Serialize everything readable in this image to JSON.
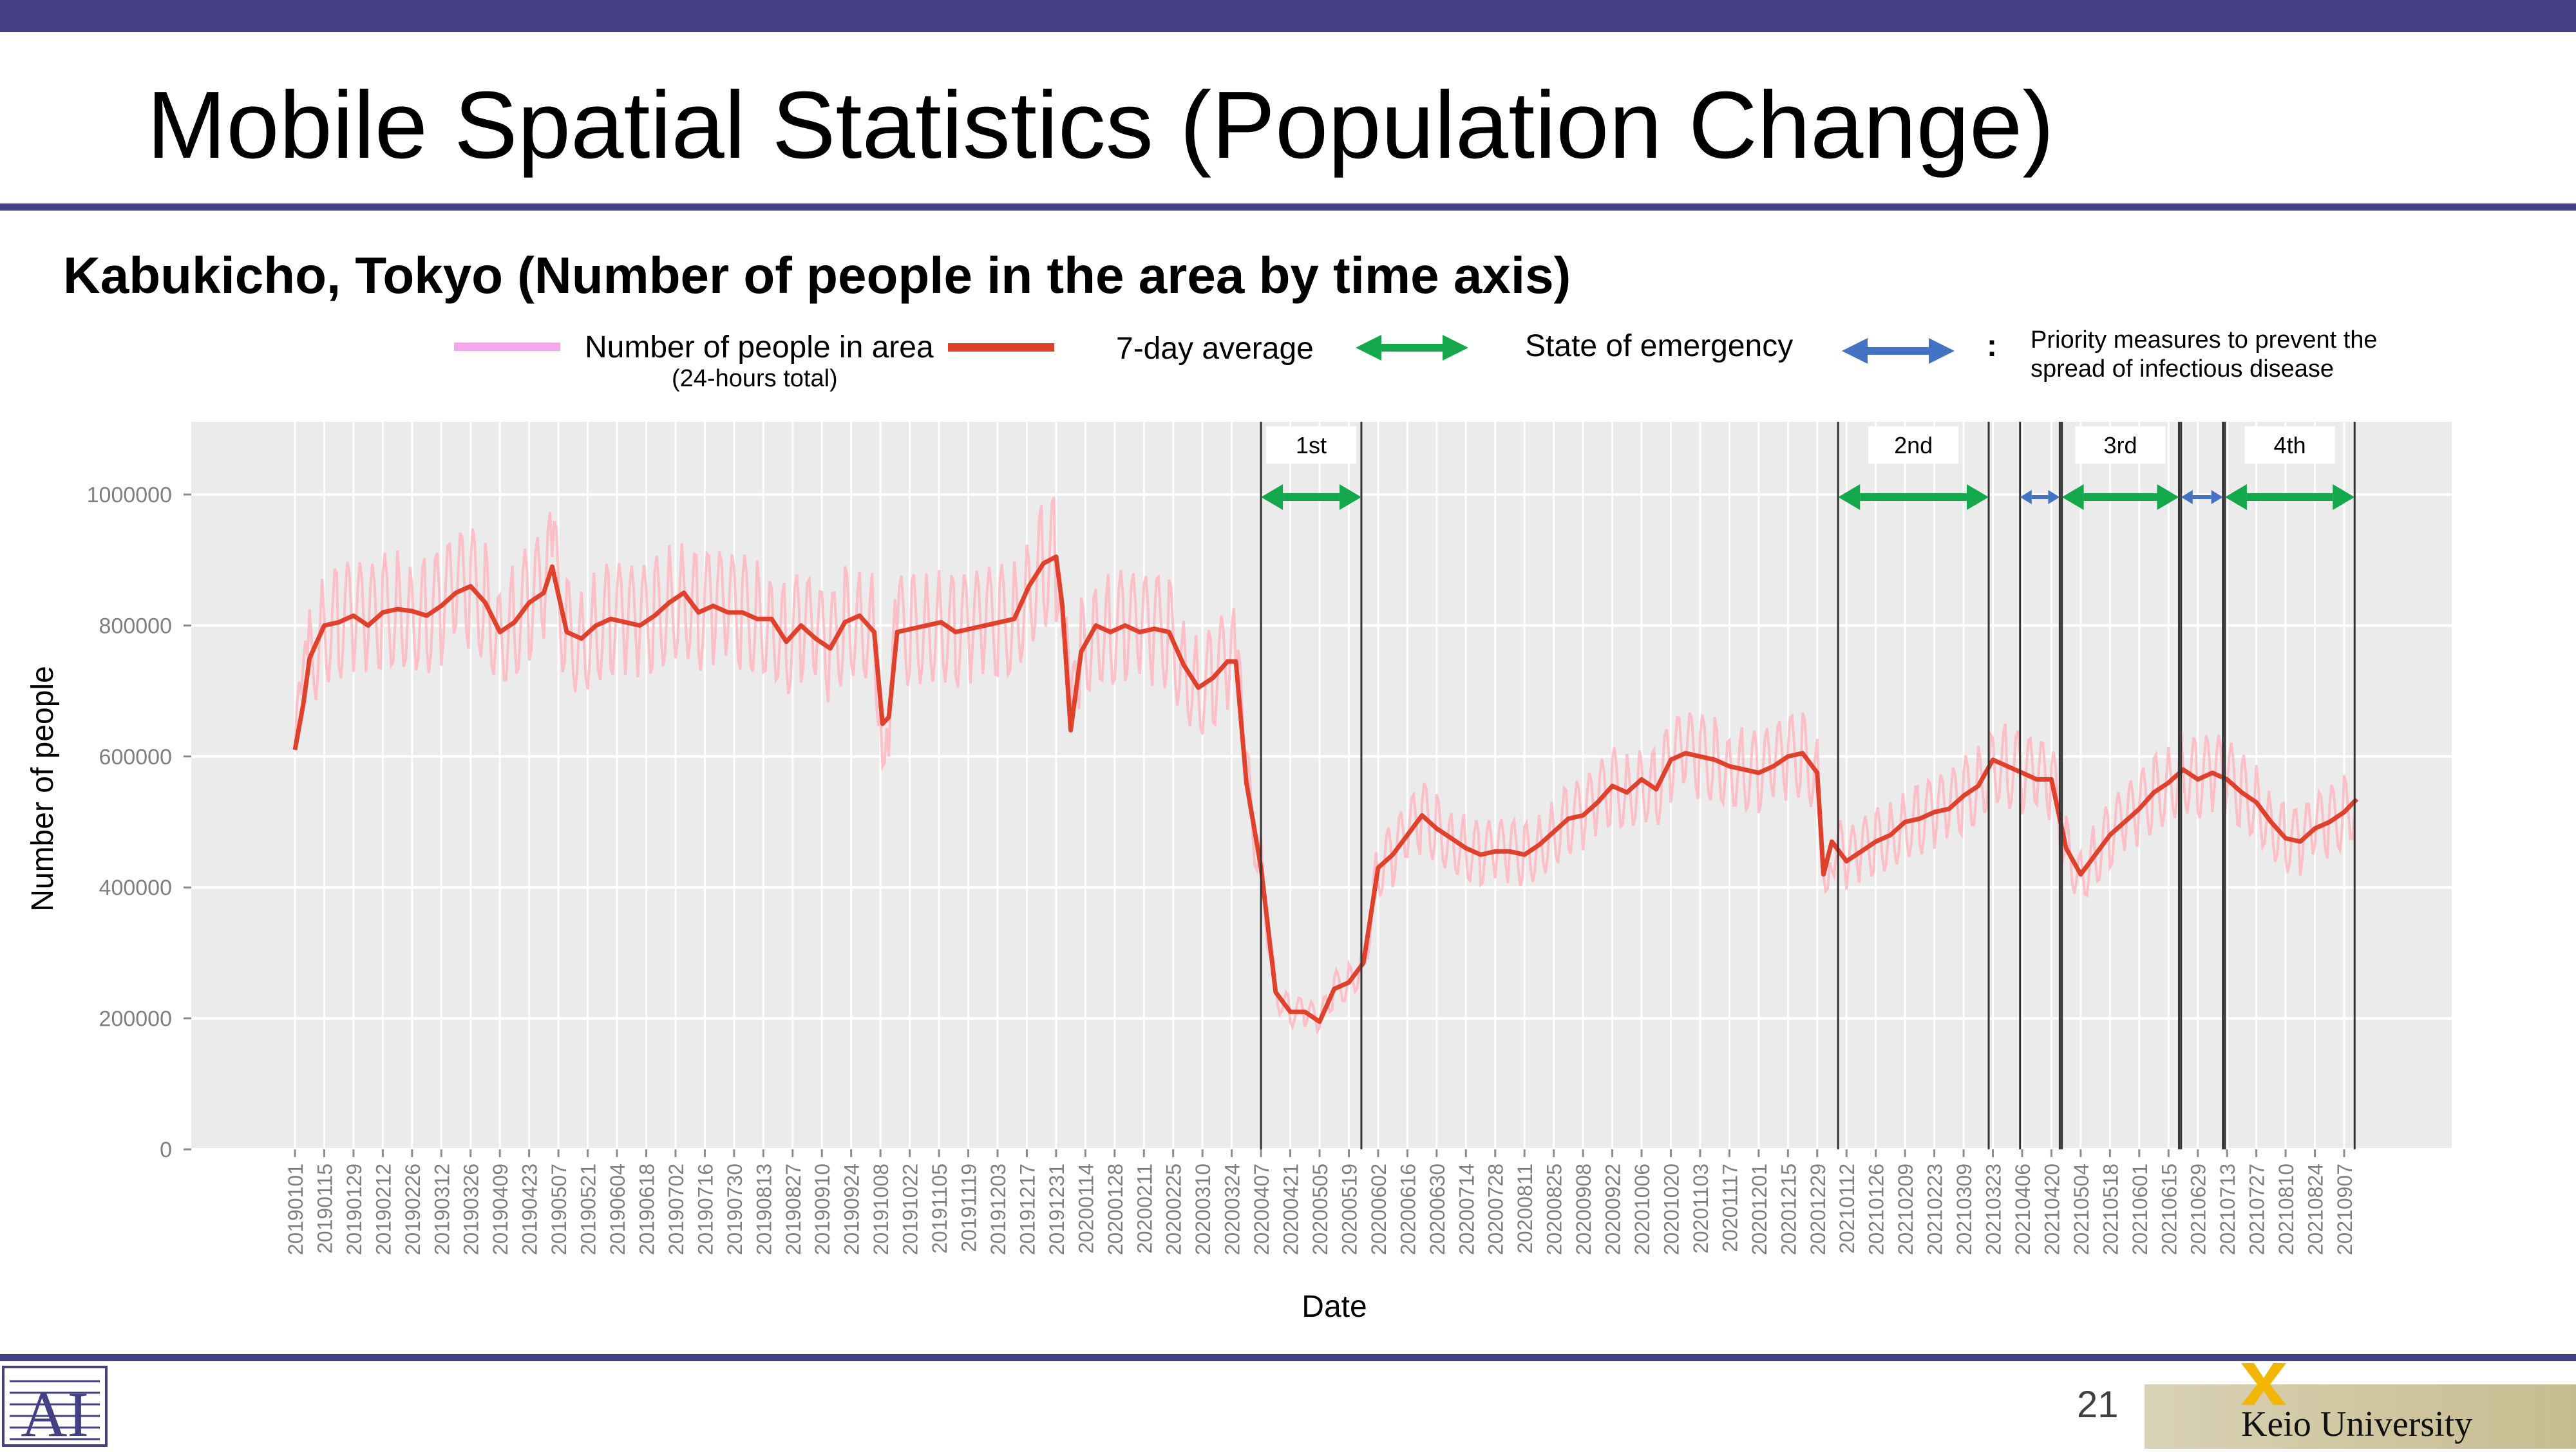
{
  "slide": {
    "title": "Mobile Spatial Statistics (Population Change)",
    "subtitle": "Kabukicho, Tokyo (Number of people in the area by time axis)",
    "page_number": "21",
    "brand": "Keio University"
  },
  "legend": {
    "daily_label": "Number of people in area",
    "daily_sub": "(24-hours total)",
    "avg_label": "7-day average",
    "emergency_label": "State of emergency",
    "priority_colon": ":",
    "priority_line1": "Priority measures to prevent the",
    "priority_line2": "spread of infectious disease"
  },
  "colors": {
    "header_bar": "#453f86",
    "daily": "#ffb6c1",
    "legend_daily": "#f4a8ec",
    "average": "#e0412c",
    "emergency": "#12a84b",
    "priority": "#4573c4",
    "plot_bg": "#ebebeb"
  },
  "chart_data": {
    "type": "line",
    "xlabel": "Date",
    "ylabel": "Number of people",
    "ylim": [
      0,
      1100000
    ],
    "yticks": [
      0,
      200000,
      400000,
      600000,
      800000,
      1000000
    ],
    "ytick_labels": [
      "0",
      "200000",
      "400000",
      "600000",
      "800000",
      "1000000"
    ],
    "x_tick_dates": [
      "20190101",
      "20190115",
      "20190129",
      "20190212",
      "20190226",
      "20190312",
      "20190326",
      "20190409",
      "20190423",
      "20190507",
      "20190521",
      "20190604",
      "20190618",
      "20190702",
      "20190716",
      "20190730",
      "20190813",
      "20190827",
      "20190910",
      "20190924",
      "20191008",
      "20191022",
      "20191105",
      "20191119",
      "20191203",
      "20191217",
      "20191231",
      "20200114",
      "20200128",
      "20200211",
      "20200225",
      "20200310",
      "20200324",
      "20200407",
      "20200421",
      "20200505",
      "20200519",
      "20200602",
      "20200616",
      "20200630",
      "20200714",
      "20200728",
      "20200811",
      "20200825",
      "20200908",
      "20200922",
      "20201006",
      "20201020",
      "20201103",
      "20201117",
      "20201201",
      "20201215",
      "20201229",
      "20210112",
      "20210126",
      "20210209",
      "20210223",
      "20210309",
      "20210323",
      "20210406",
      "20210420",
      "20210504",
      "20210518",
      "20210601",
      "20210615",
      "20210629",
      "20210713",
      "20210727",
      "20210810",
      "20210824",
      "20210907"
    ],
    "x_range": [
      "20190101",
      "20210913"
    ],
    "grid": true,
    "series": [
      {
        "name": "7-day average",
        "points": [
          [
            "20190101",
            610000
          ],
          [
            "20190105",
            680000
          ],
          [
            "20190108",
            750000
          ],
          [
            "20190115",
            800000
          ],
          [
            "20190122",
            805000
          ],
          [
            "20190129",
            815000
          ],
          [
            "20190205",
            800000
          ],
          [
            "20190212",
            820000
          ],
          [
            "20190219",
            825000
          ],
          [
            "20190226",
            822000
          ],
          [
            "20190305",
            815000
          ],
          [
            "20190312",
            830000
          ],
          [
            "20190319",
            850000
          ],
          [
            "20190326",
            860000
          ],
          [
            "20190402",
            835000
          ],
          [
            "20190409",
            790000
          ],
          [
            "20190416",
            805000
          ],
          [
            "20190423",
            835000
          ],
          [
            "20190430",
            850000
          ],
          [
            "20190504",
            890000
          ],
          [
            "20190511",
            790000
          ],
          [
            "20190518",
            780000
          ],
          [
            "20190525",
            800000
          ],
          [
            "20190601",
            810000
          ],
          [
            "20190608",
            805000
          ],
          [
            "20190615",
            800000
          ],
          [
            "20190622",
            815000
          ],
          [
            "20190629",
            835000
          ],
          [
            "20190706",
            850000
          ],
          [
            "20190713",
            820000
          ],
          [
            "20190720",
            830000
          ],
          [
            "20190727",
            820000
          ],
          [
            "20190803",
            820000
          ],
          [
            "20190810",
            810000
          ],
          [
            "20190817",
            810000
          ],
          [
            "20190824",
            775000
          ],
          [
            "20190831",
            800000
          ],
          [
            "20190907",
            780000
          ],
          [
            "20190914",
            765000
          ],
          [
            "20190921",
            805000
          ],
          [
            "20190928",
            815000
          ],
          [
            "20191005",
            790000
          ],
          [
            "20191009",
            650000
          ],
          [
            "20191012",
            660000
          ],
          [
            "20191016",
            790000
          ],
          [
            "20191023",
            795000
          ],
          [
            "20191030",
            800000
          ],
          [
            "20191106",
            805000
          ],
          [
            "20191113",
            790000
          ],
          [
            "20191120",
            795000
          ],
          [
            "20191127",
            800000
          ],
          [
            "20191204",
            805000
          ],
          [
            "20191211",
            810000
          ],
          [
            "20191218",
            860000
          ],
          [
            "20191225",
            895000
          ],
          [
            "20191231",
            905000
          ],
          [
            "20200103",
            830000
          ],
          [
            "20200107",
            640000
          ],
          [
            "20200112",
            760000
          ],
          [
            "20200119",
            800000
          ],
          [
            "20200126",
            790000
          ],
          [
            "20200202",
            800000
          ],
          [
            "20200209",
            790000
          ],
          [
            "20200216",
            795000
          ],
          [
            "20200223",
            790000
          ],
          [
            "20200301",
            740000
          ],
          [
            "20200308",
            705000
          ],
          [
            "20200315",
            720000
          ],
          [
            "20200322",
            745000
          ],
          [
            "20200326",
            745000
          ],
          [
            "20200331",
            560000
          ],
          [
            "20200407",
            430000
          ],
          [
            "20200414",
            240000
          ],
          [
            "20200421",
            210000
          ],
          [
            "20200428",
            210000
          ],
          [
            "20200505",
            195000
          ],
          [
            "20200512",
            245000
          ],
          [
            "20200519",
            255000
          ],
          [
            "20200526",
            285000
          ],
          [
            "20200602",
            430000
          ],
          [
            "20200609",
            450000
          ],
          [
            "20200616",
            480000
          ],
          [
            "20200623",
            510000
          ],
          [
            "20200630",
            490000
          ],
          [
            "20200707",
            475000
          ],
          [
            "20200714",
            460000
          ],
          [
            "20200721",
            450000
          ],
          [
            "20200728",
            455000
          ],
          [
            "20200804",
            455000
          ],
          [
            "20200811",
            450000
          ],
          [
            "20200818",
            465000
          ],
          [
            "20200825",
            485000
          ],
          [
            "20200901",
            505000
          ],
          [
            "20200908",
            510000
          ],
          [
            "20200915",
            530000
          ],
          [
            "20200922",
            555000
          ],
          [
            "20200929",
            545000
          ],
          [
            "20201006",
            565000
          ],
          [
            "20201013",
            550000
          ],
          [
            "20201020",
            595000
          ],
          [
            "20201027",
            605000
          ],
          [
            "20201103",
            600000
          ],
          [
            "20201110",
            595000
          ],
          [
            "20201117",
            585000
          ],
          [
            "20201124",
            580000
          ],
          [
            "20201201",
            575000
          ],
          [
            "20201208",
            585000
          ],
          [
            "20201215",
            600000
          ],
          [
            "20201222",
            605000
          ],
          [
            "20201229",
            575000
          ],
          [
            "20210101",
            420000
          ],
          [
            "20210105",
            470000
          ],
          [
            "20210112",
            440000
          ],
          [
            "20210119",
            455000
          ],
          [
            "20210126",
            470000
          ],
          [
            "20210202",
            480000
          ],
          [
            "20210209",
            500000
          ],
          [
            "20210216",
            505000
          ],
          [
            "20210223",
            515000
          ],
          [
            "20210302",
            520000
          ],
          [
            "20210309",
            540000
          ],
          [
            "20210316",
            555000
          ],
          [
            "20210323",
            595000
          ],
          [
            "20210330",
            585000
          ],
          [
            "20210406",
            575000
          ],
          [
            "20210413",
            565000
          ],
          [
            "20210420",
            565000
          ],
          [
            "20210427",
            460000
          ],
          [
            "20210504",
            420000
          ],
          [
            "20210511",
            450000
          ],
          [
            "20210518",
            480000
          ],
          [
            "20210525",
            500000
          ],
          [
            "20210601",
            520000
          ],
          [
            "20210608",
            545000
          ],
          [
            "20210615",
            560000
          ],
          [
            "20210622",
            580000
          ],
          [
            "20210629",
            565000
          ],
          [
            "20210706",
            575000
          ],
          [
            "20210713",
            565000
          ],
          [
            "20210720",
            545000
          ],
          [
            "20210727",
            530000
          ],
          [
            "20210803",
            500000
          ],
          [
            "20210810",
            475000
          ],
          [
            "20210817",
            470000
          ],
          [
            "20210824",
            490000
          ],
          [
            "20210831",
            500000
          ],
          [
            "20210907",
            515000
          ],
          [
            "20210913",
            535000
          ]
        ]
      }
    ],
    "daily_values_note": "",
    "periods": [
      {
        "label": "1st",
        "kind": "emergency",
        "start": "20200407",
        "end": "20200525"
      },
      {
        "label": "2nd",
        "kind": "emergency",
        "start": "20210108",
        "end": "20210321"
      },
      {
        "label": "",
        "kind": "priority",
        "start": "20210405",
        "end": "20210424"
      },
      {
        "label": "3rd",
        "kind": "emergency",
        "start": "20210425",
        "end": "20210620"
      },
      {
        "label": "",
        "kind": "priority",
        "start": "20210621",
        "end": "20210711"
      },
      {
        "label": "4th",
        "kind": "emergency",
        "start": "20210712",
        "end": "20210912"
      }
    ]
  }
}
